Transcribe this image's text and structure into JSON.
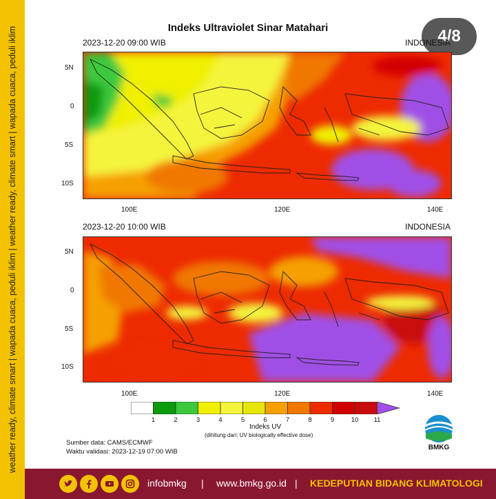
{
  "slide_counter": "4/8",
  "side_tagline": "weather ready, climate smart  |  wapada cuaca, peduli iklim  |  weather ready, climate smart  |  wapada cuaca, peduli iklim",
  "title": "Indeks Ultraviolet Sinar Matahari",
  "maps": [
    {
      "datetime": "2023-12-20  09:00 WIB",
      "region": "INDONESIA"
    },
    {
      "datetime": "2023-12-20  10:00 WIB",
      "region": "INDONESIA"
    }
  ],
  "lat_ticks": [
    "5N",
    "0",
    "5S",
    "10S"
  ],
  "lon_ticks": [
    "100E",
    "120E",
    "140E"
  ],
  "colorbar": {
    "labels": [
      "1",
      "2",
      "3",
      "4",
      "5",
      "6",
      "7",
      "8",
      "9",
      "10",
      "11"
    ],
    "colors": [
      "#ffffff",
      "#0a9a0a",
      "#3cc83c",
      "#f0f000",
      "#f4f43c",
      "#e6e60a",
      "#f5a000",
      "#f07800",
      "#ee2a00",
      "#d20000",
      "#c80a0a",
      "#a050e6"
    ],
    "title": "Indeks UV",
    "subtitle": "(dihitung dari: UV biologically effective dose)"
  },
  "source": "Sumber data: CAMS/ECMWF",
  "validity": "Waktu validasi: 2023-12-19 07:00 WIB",
  "logo_text": "BMKG",
  "footer": {
    "handle": "infobmkg",
    "website": "www.bmkg.go.id",
    "division": "KEDEPUTIAN BIDANG KLIMATOLOGI",
    "separator": "|"
  }
}
